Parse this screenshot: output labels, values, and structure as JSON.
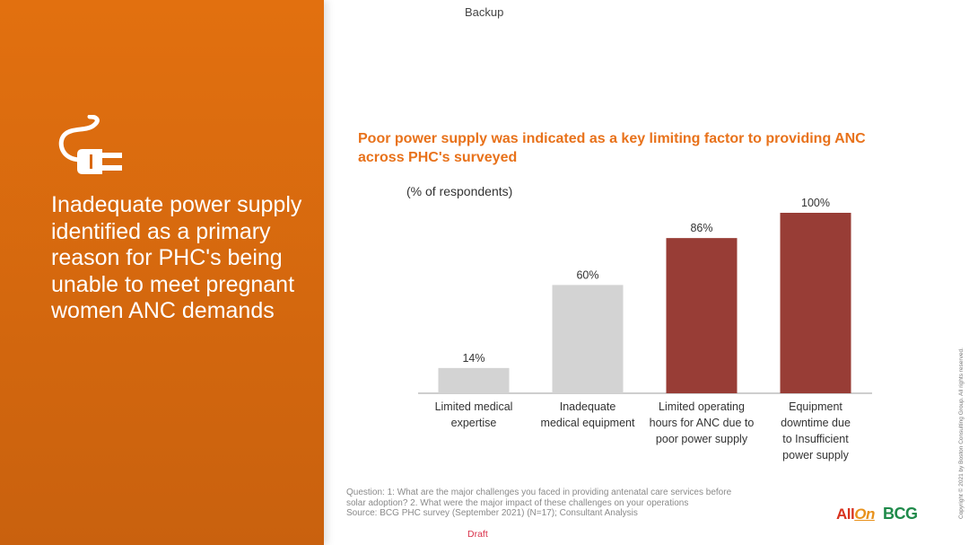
{
  "header": {
    "backup_label": "Backup"
  },
  "left_panel": {
    "icon": "plug-icon",
    "heading": "Inadequate power supply identified as a primary reason for PHC's being unable to meet pregnant women ANC demands",
    "background_color": "#d9680f"
  },
  "chart_data": {
    "type": "bar",
    "title": "Poor power supply was indicated as a key limiting factor to providing ANC across PHC's surveyed",
    "ylabel": "(% of respondents)",
    "xlabel": "",
    "ylim": [
      0,
      100
    ],
    "categories": [
      [
        "Limited medical",
        "expertise"
      ],
      [
        "Inadequate",
        "medical equipment"
      ],
      [
        "Limited operating",
        "hours for ANC due to",
        "poor power supply"
      ],
      [
        "Equipment",
        "downtime due",
        "to Insufficient",
        "power supply"
      ]
    ],
    "values": [
      14,
      60,
      86,
      100
    ],
    "value_labels": [
      "14%",
      "60%",
      "86%",
      "100%"
    ],
    "bar_colors": [
      "#d3d3d3",
      "#d3d3d3",
      "#983d36",
      "#983d36"
    ],
    "grid": false
  },
  "footnote": {
    "lines": [
      "Question: 1: What are the major challenges you faced in providing antenatal care services before",
      "solar adoption? 2. What were the major impact of these challenges on your operations",
      "Source: BCG PHC survey (September 2021) (N=17); Consultant Analysis"
    ]
  },
  "draft_label": "Draft",
  "logos": {
    "allon_all": "All",
    "allon_on": "On",
    "bcg": "BCG"
  },
  "copyright": "Copyright © 2021 by Boston Consulting Group. All rights reserved."
}
